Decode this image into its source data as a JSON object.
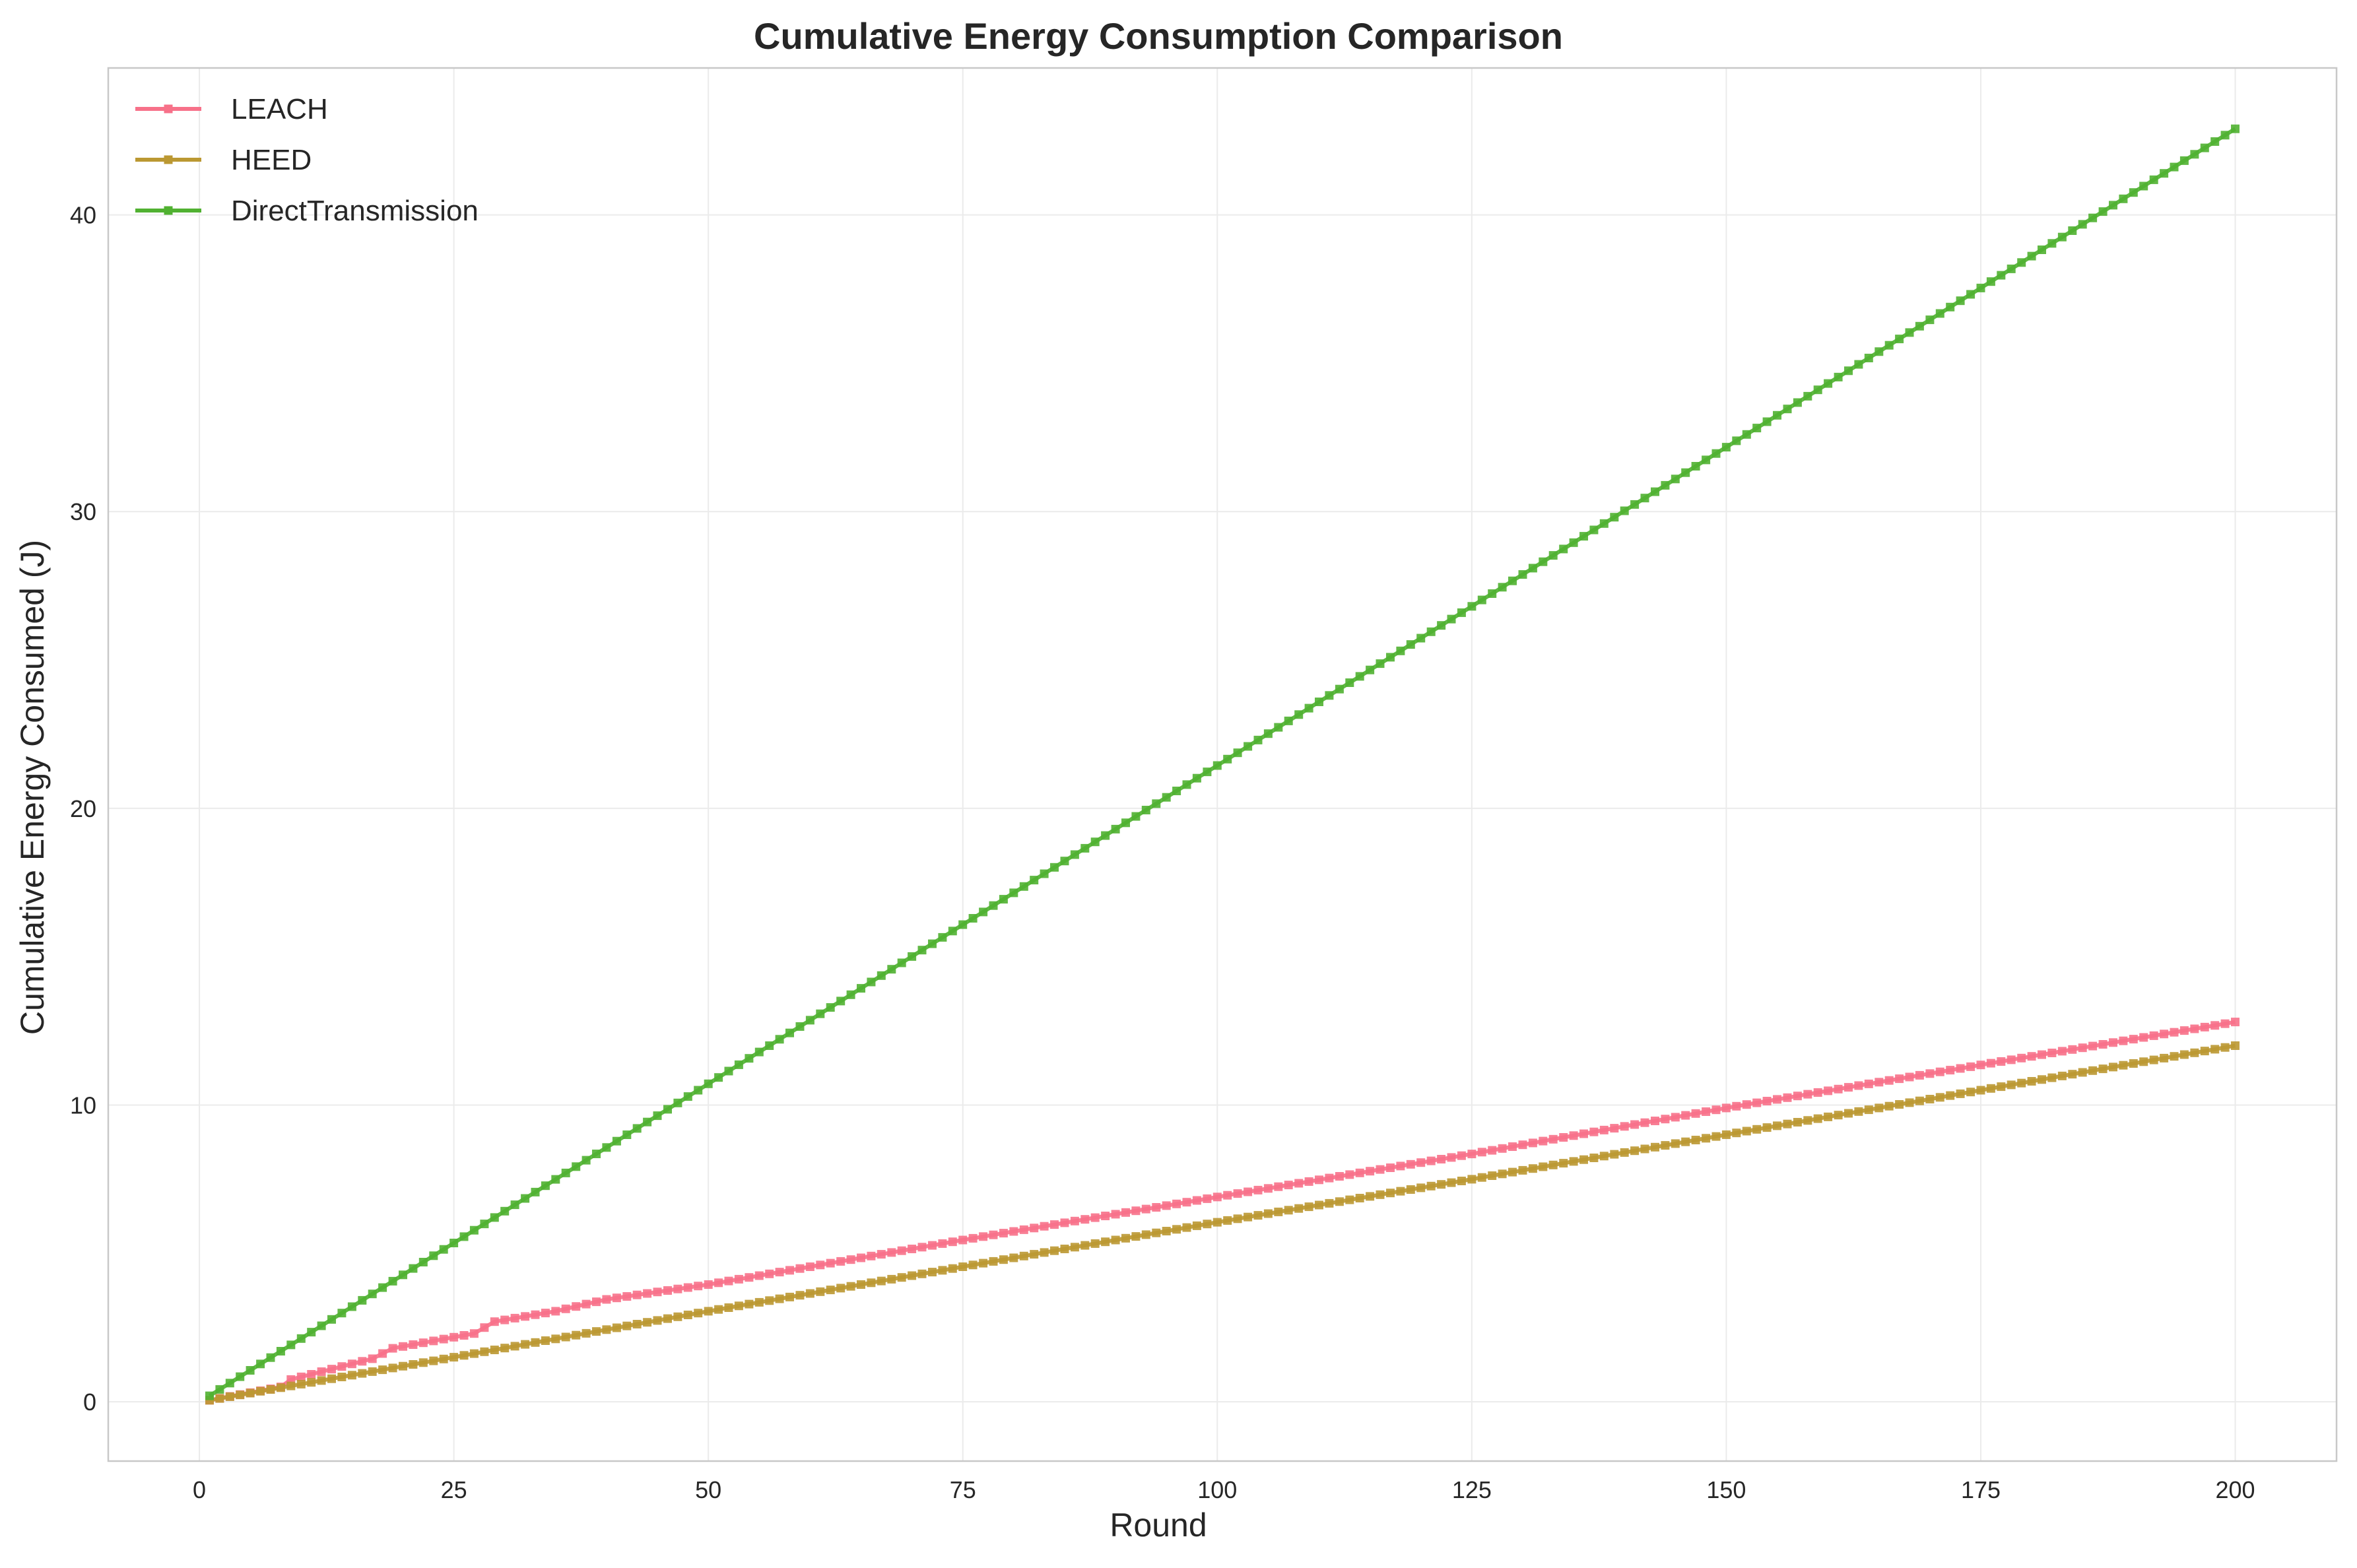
{
  "chart_data": {
    "type": "line",
    "title": "Cumulative Energy Consumption Comparison",
    "xlabel": "Round",
    "ylabel": "Cumulative Energy Consumed (J)",
    "xlim": [
      -8.95,
      209.95
    ],
    "ylim": [
      -2.0,
      44.95
    ],
    "xticks": [
      0,
      25,
      50,
      75,
      100,
      125,
      150,
      175,
      200
    ],
    "yticks": [
      0,
      10,
      20,
      30,
      40
    ],
    "grid": true,
    "legend": "top-left",
    "x_range": [
      1,
      200
    ],
    "marker": "square",
    "series": [
      {
        "name": "LEACH",
        "color": "#f77189",
        "knots": [
          [
            1,
            0.05
          ],
          [
            8,
            0.5
          ],
          [
            9,
            0.75
          ],
          [
            17,
            1.45
          ],
          [
            19,
            1.8
          ],
          [
            27,
            2.3
          ],
          [
            29,
            2.7
          ],
          [
            35,
            3.05
          ],
          [
            40,
            3.45
          ],
          [
            50,
            3.95
          ],
          [
            75,
            5.45
          ],
          [
            100,
            6.9
          ],
          [
            125,
            8.35
          ],
          [
            150,
            9.9
          ],
          [
            175,
            11.35
          ],
          [
            200,
            12.8
          ]
        ]
      },
      {
        "name": "HEED",
        "color": "#bb9832",
        "knots": [
          [
            1,
            0.05
          ],
          [
            25,
            1.5
          ],
          [
            50,
            3.05
          ],
          [
            75,
            4.55
          ],
          [
            100,
            6.05
          ],
          [
            125,
            7.5
          ],
          [
            150,
            9.0
          ],
          [
            175,
            10.5
          ],
          [
            200,
            12.0
          ]
        ]
      },
      {
        "name": "DirectTransmission",
        "color": "#50b131",
        "knots": [
          [
            1,
            0.2
          ],
          [
            200,
            42.9
          ]
        ]
      }
    ]
  }
}
